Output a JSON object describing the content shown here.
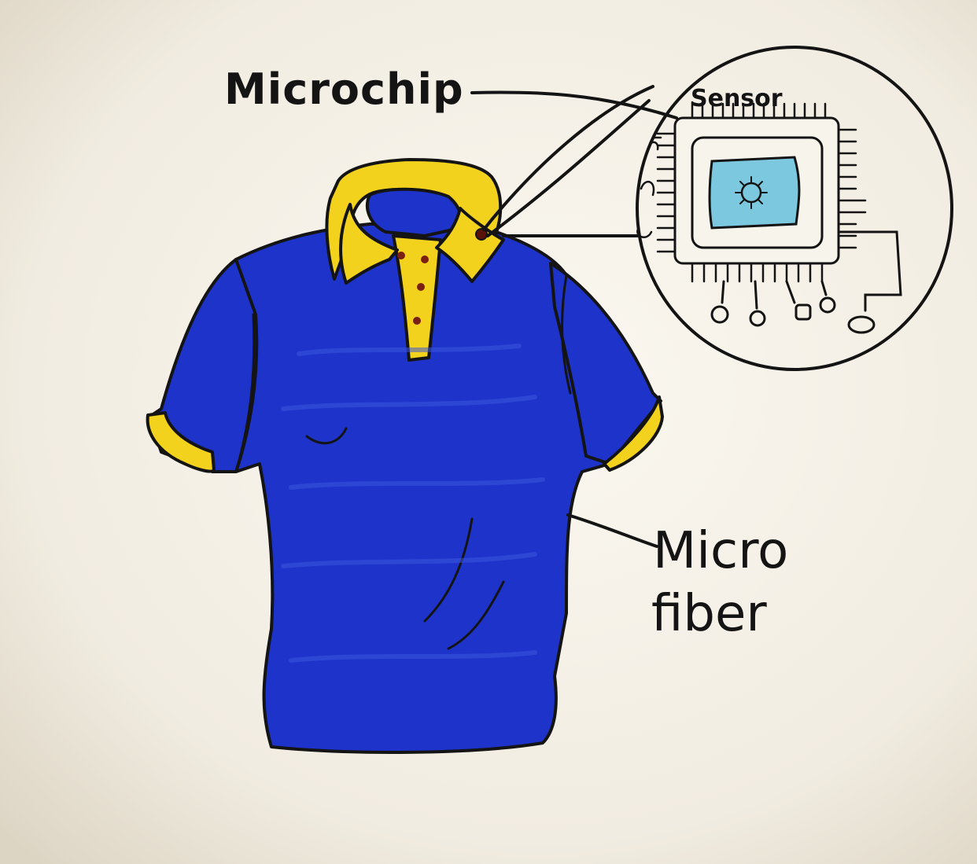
{
  "labels": {
    "microchip": "Microchip",
    "sensor": "Sensor",
    "micro_fiber_line1": "Micro",
    "micro_fiber_line2": "fiber"
  },
  "colors": {
    "paper": "#f3efe6",
    "shirt_blue": "#1d33c9",
    "shirt_blue_dark": "#14239a",
    "collar_yellow": "#f2d21c",
    "sensor_light_blue": "#7cc8de",
    "ink": "#141414"
  }
}
